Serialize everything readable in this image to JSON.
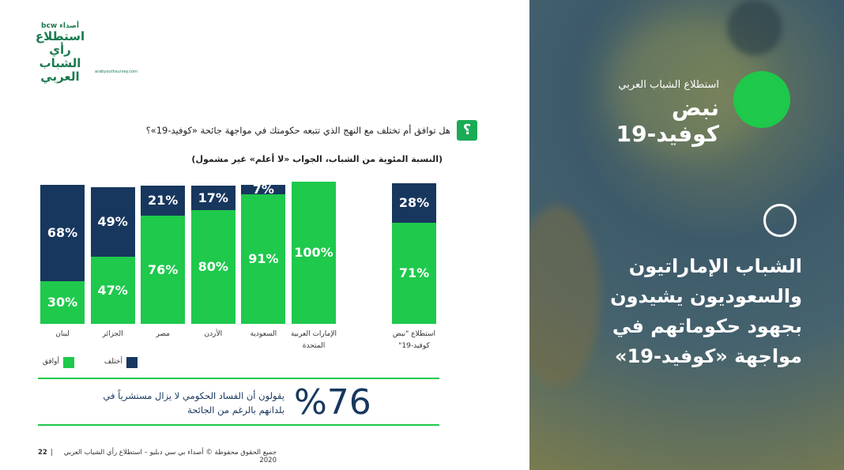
{
  "logo": {
    "brand": "أصداء bcw",
    "title": "استطلاع رأي الشباب العربي",
    "url": "arabyouthsurvey.com"
  },
  "question": "هل توافق أم تختلف مع النهج الذي تتبعه حكومتك في مواجهة جائحة «كوفيد-19»؟",
  "chart_data": {
    "type": "stacked_bar",
    "subtitle": "(النسبة المئوية من الشباب، الجواب «لا أعلم» غير مشمول)",
    "categories": [
      "لبنان",
      "الجزائر",
      "مصر",
      "الأردن",
      "السعودية",
      "الإمارات العربية المتحدة",
      "استطلاع \"نبض كوفيد-19\""
    ],
    "series": [
      {
        "name": "أوافق",
        "color": "#1ec94c",
        "values": [
          30,
          47,
          76,
          80,
          91,
          100,
          71
        ],
        "value_labels": [
          "30%",
          "47%",
          "76%",
          "80%",
          "91%",
          "100%",
          "71%"
        ]
      },
      {
        "name": "أختلف",
        "color": "#17375e",
        "values": [
          68,
          49,
          21,
          17,
          7,
          null,
          28
        ],
        "value_labels": [
          "68%",
          "49%",
          "21%",
          "17%",
          "7%",
          null,
          "28%"
        ]
      }
    ],
    "ylim": [
      0,
      100
    ]
  },
  "stat": {
    "value": "%76",
    "text": "يقولون أن الفساد الحكومي لا يزال مستشرياً في بلدانهم بالرغم من الجائحة"
  },
  "footer": {
    "copyright": "جميع الحقوق محفوظة © أصداء بي سي دبليو – استطلاع رأي الشباب العربي 2020",
    "page": "22"
  },
  "panel": {
    "kicker": "استطلاع الشباب العربي",
    "title": "نبض كوفيد-19",
    "headline": "الشباب الإماراتيون والسعوديون يشيدون بجهود حكوماتهم في مواجهة «كوفيد-19»"
  }
}
